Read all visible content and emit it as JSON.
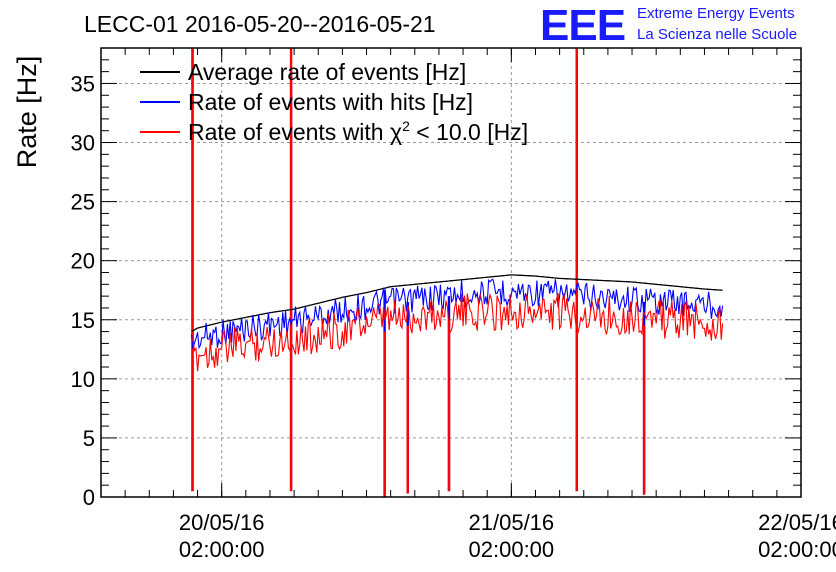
{
  "chart_data": {
    "type": "line",
    "title": "LECC-01 2016-05-20--2016-05-21",
    "ylabel": "Rate [Hz]",
    "xlabel": "",
    "ylim": [
      0,
      38
    ],
    "xlim": [
      "2016-05-19 16:00",
      "2016-05-22 02:00"
    ],
    "grid": true,
    "legend_position": "top-left",
    "yticks": [
      0,
      5,
      10,
      15,
      20,
      25,
      30,
      35
    ],
    "xticks": [
      {
        "x": "2016-05-20 02:00",
        "line1": "20/05/16",
        "line2": "02:00:00"
      },
      {
        "x": "2016-05-21 02:00",
        "line1": "21/05/16",
        "line2": "02:00:00"
      },
      {
        "x": "2016-05-22 02:00",
        "line1": "22/05/16",
        "line2": "02:00:00"
      }
    ],
    "series": [
      {
        "name": "Average rate of events [Hz]",
        "color": "#000000",
        "x": [
          "2016-05-19 23:30",
          "2016-05-20 00:00",
          "2016-05-20 02:00",
          "2016-05-20 04:00",
          "2016-05-20 06:00",
          "2016-05-20 08:00",
          "2016-05-20 10:00",
          "2016-05-20 12:00",
          "2016-05-20 14:00",
          "2016-05-20 16:00",
          "2016-05-20 18:00",
          "2016-05-20 20:00",
          "2016-05-20 22:00",
          "2016-05-21 00:00",
          "2016-05-21 02:00",
          "2016-05-21 04:00",
          "2016-05-21 06:00",
          "2016-05-21 08:00",
          "2016-05-21 10:00",
          "2016-05-21 12:00",
          "2016-05-21 14:00",
          "2016-05-21 16:00",
          "2016-05-21 18:00",
          "2016-05-21 19:30"
        ],
        "values": [
          14.0,
          14.3,
          14.8,
          15.2,
          15.6,
          15.9,
          16.4,
          16.9,
          17.3,
          17.8,
          18.0,
          18.2,
          18.4,
          18.6,
          18.8,
          18.7,
          18.5,
          18.4,
          18.3,
          18.2,
          18.0,
          17.8,
          17.6,
          17.5
        ]
      },
      {
        "name": "Rate of events with hits [Hz]",
        "color": "#0000ff",
        "x": [
          "2016-05-19 23:30",
          "2016-05-20 00:00",
          "2016-05-20 02:00",
          "2016-05-20 04:00",
          "2016-05-20 06:00",
          "2016-05-20 08:00",
          "2016-05-20 10:00",
          "2016-05-20 12:00",
          "2016-05-20 14:00",
          "2016-05-20 16:00",
          "2016-05-20 18:00",
          "2016-05-20 20:00",
          "2016-05-20 22:00",
          "2016-05-21 00:00",
          "2016-05-21 02:00",
          "2016-05-21 04:00",
          "2016-05-21 06:00",
          "2016-05-21 08:00",
          "2016-05-21 10:00",
          "2016-05-21 12:00",
          "2016-05-21 14:00",
          "2016-05-21 16:00",
          "2016-05-21 18:00",
          "2016-05-21 19:30"
        ],
        "values": [
          13.0,
          13.4,
          13.9,
          14.3,
          14.6,
          14.9,
          15.3,
          15.8,
          16.2,
          16.6,
          16.8,
          17.0,
          17.2,
          17.3,
          17.4,
          17.3,
          17.2,
          17.0,
          16.9,
          16.8,
          16.6,
          16.5,
          16.3,
          16.2
        ]
      },
      {
        "name": "Rate of events with χ² < 10.0 [Hz]",
        "label_main": "Rate of events with ",
        "label_chi": "χ",
        "label_sup": "2",
        "label_rest": " < 10.0 [Hz]",
        "color": "#ff0000",
        "x": [
          "2016-05-19 23:30",
          "2016-05-20 00:00",
          "2016-05-20 02:00",
          "2016-05-20 04:00",
          "2016-05-20 06:00",
          "2016-05-20 08:00",
          "2016-05-20 10:00",
          "2016-05-20 12:00",
          "2016-05-20 14:00",
          "2016-05-20 16:00",
          "2016-05-20 18:00",
          "2016-05-20 20:00",
          "2016-05-20 22:00",
          "2016-05-21 00:00",
          "2016-05-21 02:00",
          "2016-05-21 04:00",
          "2016-05-21 06:00",
          "2016-05-21 08:00",
          "2016-05-21 10:00",
          "2016-05-21 12:00",
          "2016-05-21 14:00",
          "2016-05-21 16:00",
          "2016-05-21 18:00",
          "2016-05-21 19:30"
        ],
        "values": [
          11.8,
          12.1,
          12.6,
          12.9,
          13.2,
          13.4,
          13.8,
          14.2,
          14.7,
          15.1,
          15.3,
          15.5,
          15.6,
          15.7,
          15.8,
          15.7,
          15.6,
          15.5,
          15.4,
          15.3,
          15.1,
          15.0,
          14.8,
          14.7
        ]
      }
    ],
    "spikes": [
      {
        "x": "2016-05-19 23:35",
        "red_top": 38,
        "red_bottom": 0.5,
        "blue_top": 38
      },
      {
        "x": "2016-05-20 07:45",
        "red_top": 38,
        "red_bottom": 0.5,
        "blue_top": 36
      },
      {
        "x": "2016-05-20 15:30",
        "red_top": 14.0,
        "red_bottom": 0,
        "blue_top": 17.5
      },
      {
        "x": "2016-05-20 17:25",
        "red_top": 14.5,
        "red_bottom": 0.3,
        "blue_top": 16.5
      },
      {
        "x": "2016-05-20 20:50",
        "red_top": 15.0,
        "red_bottom": 0.5,
        "blue_top": 17.0
      },
      {
        "x": "2016-05-21 07:25",
        "red_top": 38,
        "red_bottom": 0.5,
        "blue_top": 38
      },
      {
        "x": "2016-05-21 13:00",
        "red_top": 14.5,
        "red_bottom": 0.2,
        "blue_top": 16.5
      }
    ]
  },
  "logo": {
    "letters": "EEE",
    "line1": "Extreme Energy Events",
    "line2": "La Scienza nelle Scuole"
  }
}
